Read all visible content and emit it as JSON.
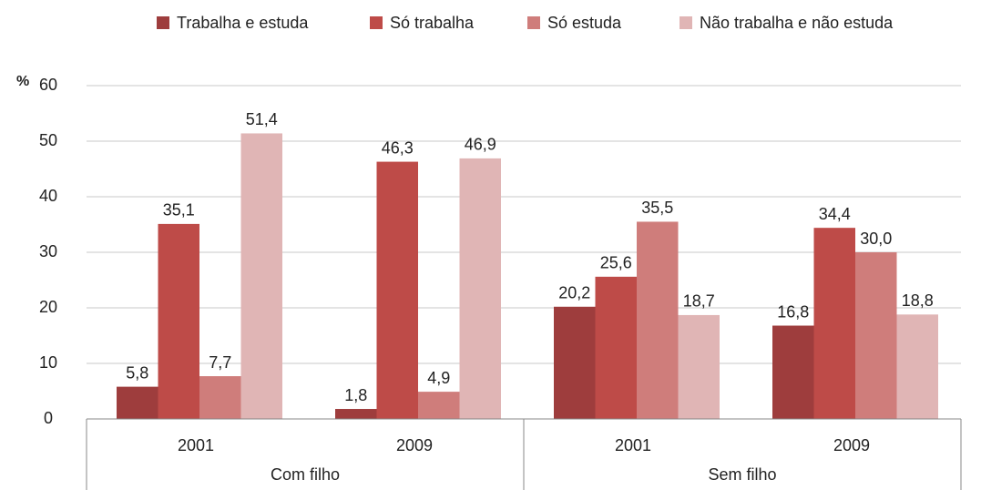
{
  "chart_data": {
    "type": "bar",
    "y_label": "%",
    "categories": [
      "2001",
      "2009",
      "2001",
      "2009"
    ],
    "groups": [
      "Com filho",
      "Sem filho"
    ],
    "series": [
      {
        "name": "Trabalha e estuda",
        "color": "#9e3d3d",
        "values": [
          5.8,
          1.8,
          20.2,
          16.8
        ],
        "value_labels": [
          "5,8",
          "1,8",
          "20,2",
          "16,8"
        ]
      },
      {
        "name": "Só trabalha",
        "color": "#be4b48",
        "values": [
          35.1,
          46.3,
          25.6,
          34.4
        ],
        "value_labels": [
          "35,1",
          "46,3",
          "25,6",
          "34,4"
        ]
      },
      {
        "name": "Só estuda",
        "color": "#cf7d7b",
        "values": [
          7.7,
          4.9,
          35.5,
          30.0
        ],
        "value_labels": [
          "7,7",
          "4,9",
          "35,5",
          "30,0"
        ]
      },
      {
        "name": "Não trabalha e não estuda",
        "color": "#e0b5b5",
        "values": [
          51.4,
          46.9,
          18.7,
          18.8
        ],
        "value_labels": [
          "51,4",
          "46,9",
          "18,7",
          "18,8"
        ]
      }
    ],
    "ylim": [
      0,
      60
    ],
    "yticks": [
      0,
      10,
      20,
      30,
      40,
      50,
      60
    ],
    "grid": true,
    "legend": "top"
  }
}
